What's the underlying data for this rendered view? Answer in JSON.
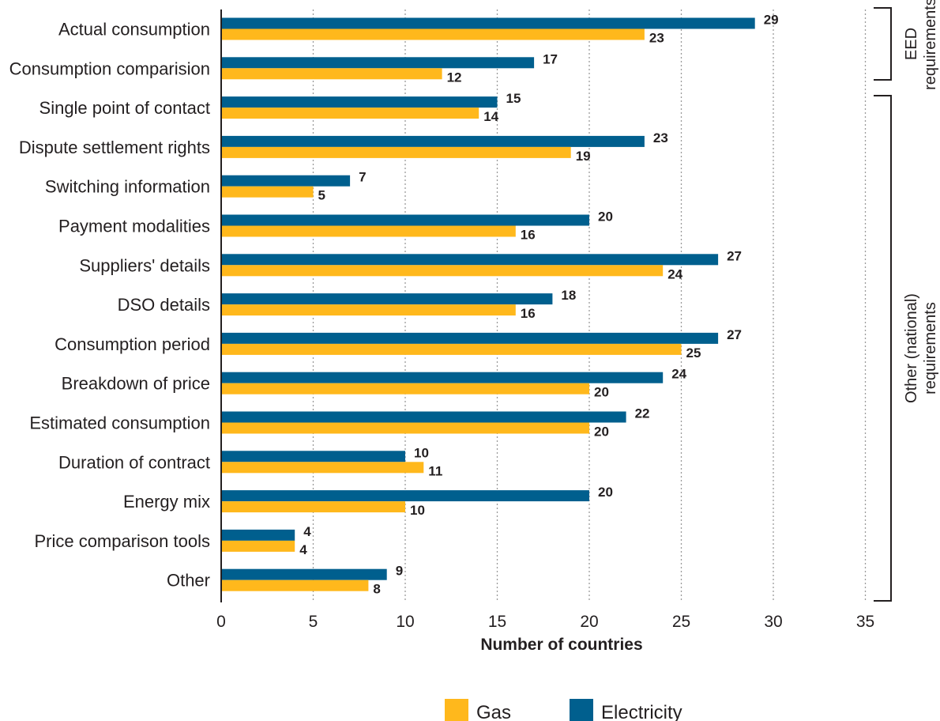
{
  "colors": {
    "gas": "#ffb81c",
    "electricity": "#005f8e",
    "text": "#231f20",
    "grid": "#9a9a9a"
  },
  "chart_data": {
    "type": "bar",
    "orientation": "horizontal",
    "categories": [
      "Actual consumption",
      "Consumption comparision",
      "Single point of contact",
      "Dispute settlement rights",
      "Switching information",
      "Payment modalities",
      "Suppliers' details",
      "DSO details",
      "Consumption period",
      "Breakdown of price",
      "Estimated consumption",
      "Duration of contract",
      "Energy mix",
      "Price comparison tools",
      "Other"
    ],
    "series": [
      {
        "name": "Electricity",
        "values": [
          29,
          17,
          15,
          23,
          7,
          20,
          27,
          18,
          27,
          24,
          22,
          10,
          20,
          4,
          9
        ]
      },
      {
        "name": "Gas",
        "values": [
          23,
          12,
          14,
          19,
          5,
          16,
          24,
          16,
          25,
          20,
          20,
          11,
          10,
          4,
          8
        ]
      }
    ],
    "xlabel": "Number of countries",
    "xlim": [
      0,
      35
    ],
    "xticks": [
      "0",
      "5",
      "10",
      "15",
      "20",
      "25",
      "30",
      "35"
    ],
    "grid": "vertical dotted",
    "legend": {
      "position": "bottom",
      "items": [
        "Gas",
        "Electricity"
      ]
    },
    "groups": [
      {
        "label": "EED requirements",
        "lines": [
          "EED",
          "requirements"
        ],
        "from": 0,
        "to": 1
      },
      {
        "label": "Other (national) requirements",
        "lines": [
          "Other (national)",
          "requirements"
        ],
        "from": 2,
        "to": 14
      }
    ]
  }
}
